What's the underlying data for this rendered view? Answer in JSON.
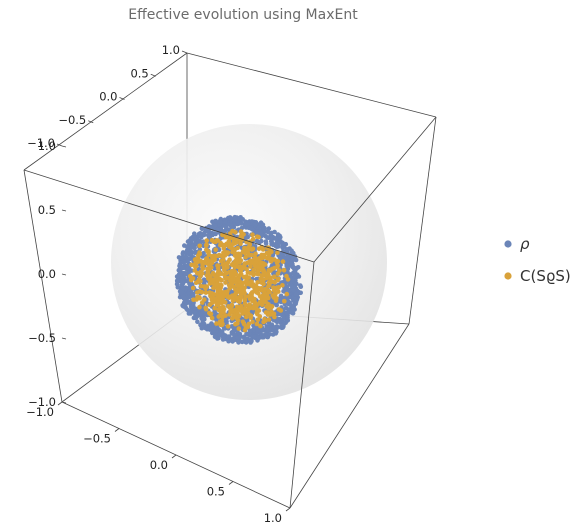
{
  "chart_data": {
    "type": "scatter",
    "subtype": "3d-scatter-in-bloch-sphere",
    "title": "Effective evolution using MaxEnt",
    "series": [
      {
        "name": "ρ",
        "color": "#6b85b8",
        "distribution": "sphere-shell",
        "radius": 0.5,
        "count": 1400
      },
      {
        "name": "C(SϱS)",
        "color": "#d9a23a",
        "distribution": "ball",
        "radius": 0.4,
        "count": 700
      }
    ],
    "axes": {
      "x": {
        "range": [
          -1,
          1
        ],
        "ticks": [
          "−1.0",
          "−0.5",
          "0.0",
          "0.5",
          "1.0"
        ]
      },
      "y": {
        "range": [
          -1,
          1
        ],
        "ticks": [
          "−1.0",
          "−0.5",
          "0.0",
          "0.5",
          "1.0"
        ]
      },
      "z": {
        "range": [
          -1,
          1
        ],
        "ticks": [
          "−1.0",
          "−0.5",
          "0.0",
          "0.5",
          "1.0"
        ]
      }
    },
    "reference_sphere": {
      "radius": 1.0,
      "color": "#e8e8e8"
    },
    "legend_position": "right"
  }
}
